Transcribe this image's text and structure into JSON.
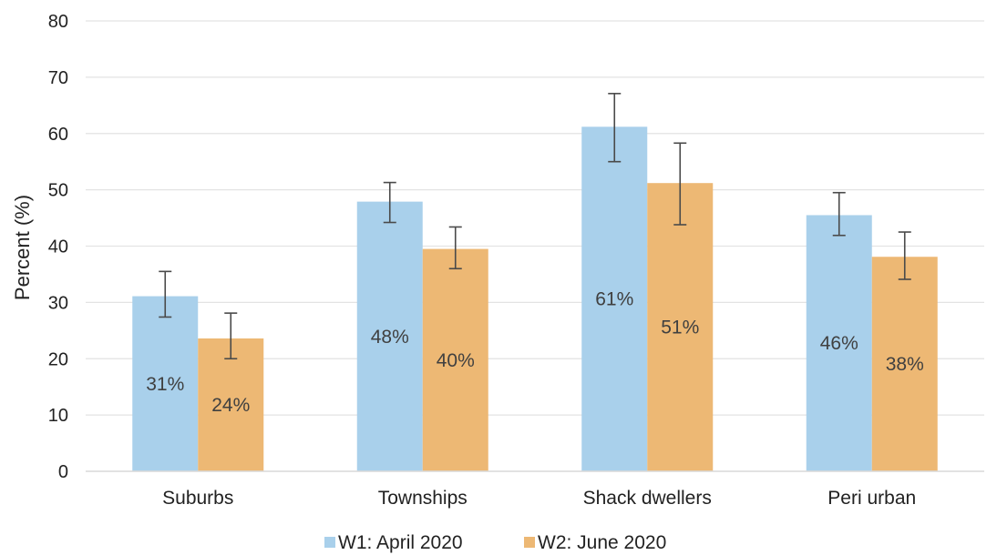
{
  "chart_data": {
    "type": "bar",
    "title": "",
    "xlabel": "",
    "ylabel": "Percent (%)",
    "ylim": [
      0,
      80
    ],
    "yticks": [
      0,
      10,
      20,
      30,
      40,
      50,
      60,
      70,
      80
    ],
    "grid": true,
    "legend_position": "bottom",
    "categories": [
      "Suburbs",
      "Townships",
      "Shack dwellers",
      "Peri urban"
    ],
    "series": [
      {
        "name": "W1: April 2020",
        "color": "#A9D0EB",
        "values": [
          31.1,
          47.9,
          61.2,
          45.5
        ],
        "error_low": [
          27.4,
          44.2,
          55.0,
          41.9
        ],
        "error_high": [
          35.5,
          51.3,
          67.1,
          49.5
        ],
        "labels": [
          "31%",
          "48%",
          "61%",
          "46%"
        ]
      },
      {
        "name": "W2: June 2020",
        "color": "#EDB874",
        "values": [
          23.6,
          39.5,
          51.2,
          38.1
        ],
        "error_low": [
          20.0,
          36.0,
          43.8,
          34.1
        ],
        "error_high": [
          28.1,
          43.4,
          58.3,
          42.5
        ],
        "labels": [
          "24%",
          "40%",
          "51%",
          "38%"
        ]
      }
    ]
  }
}
